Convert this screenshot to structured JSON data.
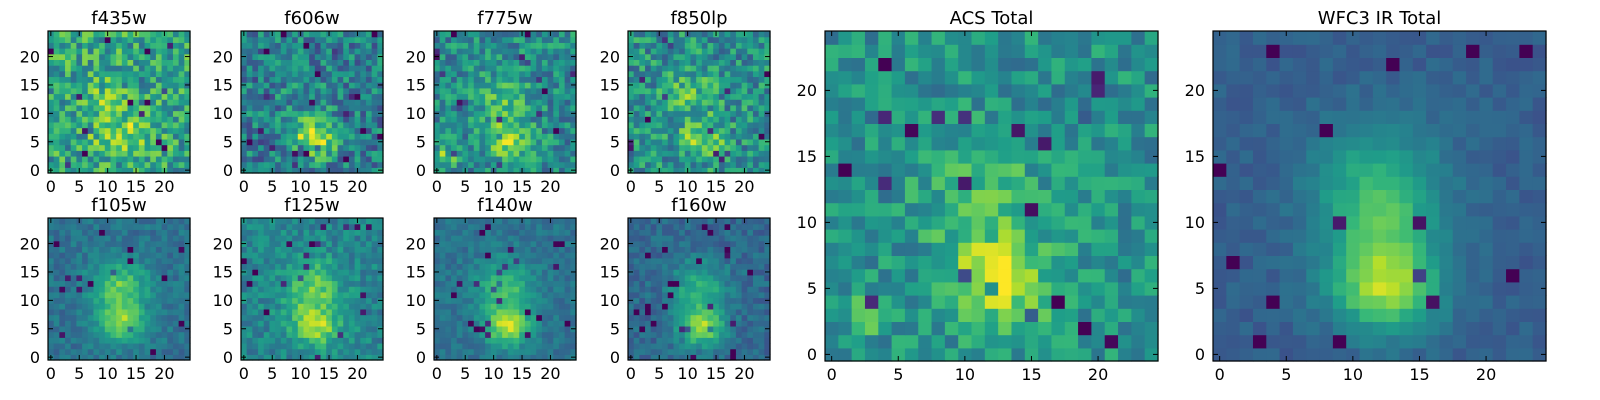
{
  "chart_data": [
    {
      "type": "heatmap",
      "title": "f435w",
      "grid": 25,
      "x_ticks": [
        0,
        5,
        10,
        15,
        20
      ],
      "y_ticks": [
        0,
        5,
        10,
        15,
        20
      ],
      "xlim": [
        -0.5,
        24.5
      ],
      "ylim": [
        -0.5,
        24.5
      ],
      "noise": 0.24,
      "background": 0.58,
      "blobs": [
        {
          "x": 12.5,
          "y": 6.5,
          "sx": 3.5,
          "sy": 2.5,
          "amp": 0.25
        },
        {
          "x": 9.0,
          "y": 13.0,
          "sx": 2.5,
          "sy": 2.5,
          "amp": 0.15
        }
      ],
      "colormap": "viridis"
    },
    {
      "type": "heatmap",
      "title": "f606w",
      "grid": 25,
      "x_ticks": [
        0,
        5,
        10,
        15,
        20
      ],
      "y_ticks": [
        0,
        5,
        10,
        15,
        20
      ],
      "xlim": [
        -0.5,
        24.5
      ],
      "ylim": [
        -0.5,
        24.5
      ],
      "noise": 0.22,
      "background": 0.42,
      "blobs": [
        {
          "x": 12.5,
          "y": 5.5,
          "sx": 2.5,
          "sy": 2.2,
          "amp": 0.55
        },
        {
          "x": 11.0,
          "y": 12.0,
          "sx": 3.0,
          "sy": 3.0,
          "amp": 0.12
        }
      ],
      "colormap": "viridis"
    },
    {
      "type": "heatmap",
      "title": "f775w",
      "grid": 25,
      "x_ticks": [
        0,
        5,
        10,
        15,
        20
      ],
      "y_ticks": [
        0,
        5,
        10,
        15,
        20
      ],
      "xlim": [
        -0.5,
        24.5
      ],
      "ylim": [
        -0.5,
        24.5
      ],
      "noise": 0.2,
      "background": 0.48,
      "blobs": [
        {
          "x": 12.5,
          "y": 5.5,
          "sx": 2.8,
          "sy": 2.4,
          "amp": 0.38
        },
        {
          "x": 11.5,
          "y": 13.0,
          "sx": 3.0,
          "sy": 3.0,
          "amp": 0.2
        },
        {
          "x": 1.5,
          "y": 2.5,
          "sx": 1.2,
          "sy": 1.0,
          "amp": 0.35
        }
      ],
      "colormap": "viridis"
    },
    {
      "type": "heatmap",
      "title": "f850lp",
      "grid": 25,
      "x_ticks": [
        0,
        5,
        10,
        15,
        20
      ],
      "y_ticks": [
        0,
        5,
        10,
        15,
        20
      ],
      "xlim": [
        -0.5,
        24.5
      ],
      "ylim": [
        -0.5,
        24.5
      ],
      "noise": 0.22,
      "background": 0.5,
      "blobs": [
        {
          "x": 12.5,
          "y": 5.5,
          "sx": 2.8,
          "sy": 2.4,
          "amp": 0.3
        },
        {
          "x": 10.5,
          "y": 13.5,
          "sx": 3.0,
          "sy": 3.0,
          "amp": 0.18
        }
      ],
      "colormap": "viridis"
    },
    {
      "type": "heatmap",
      "title": "f105w",
      "grid": 25,
      "x_ticks": [
        0,
        5,
        10,
        15,
        20
      ],
      "y_ticks": [
        0,
        5,
        10,
        15,
        20
      ],
      "xlim": [
        -0.5,
        24.5
      ],
      "ylim": [
        -0.5,
        24.5
      ],
      "noise": 0.09,
      "background": 0.38,
      "blobs": [
        {
          "x": 12.5,
          "y": 6.0,
          "sx": 3.0,
          "sy": 2.4,
          "amp": 0.42
        },
        {
          "x": 12.0,
          "y": 12.5,
          "sx": 3.4,
          "sy": 3.2,
          "amp": 0.38
        }
      ],
      "colormap": "viridis"
    },
    {
      "type": "heatmap",
      "title": "f125w",
      "grid": 25,
      "x_ticks": [
        0,
        5,
        10,
        15,
        20
      ],
      "y_ticks": [
        0,
        5,
        10,
        15,
        20
      ],
      "xlim": [
        -0.5,
        24.5
      ],
      "ylim": [
        -0.5,
        24.5
      ],
      "noise": 0.12,
      "background": 0.45,
      "blobs": [
        {
          "x": 12.5,
          "y": 5.5,
          "sx": 3.0,
          "sy": 2.5,
          "amp": 0.4
        },
        {
          "x": 12.0,
          "y": 12.5,
          "sx": 3.5,
          "sy": 3.5,
          "amp": 0.32
        }
      ],
      "colormap": "viridis"
    },
    {
      "type": "heatmap",
      "title": "f140w",
      "grid": 25,
      "x_ticks": [
        0,
        5,
        10,
        15,
        20
      ],
      "y_ticks": [
        0,
        5,
        10,
        15,
        20
      ],
      "xlim": [
        -0.5,
        24.5
      ],
      "ylim": [
        -0.5,
        24.5
      ],
      "noise": 0.08,
      "background": 0.38,
      "blobs": [
        {
          "x": 12.5,
          "y": 5.5,
          "sx": 2.8,
          "sy": 2.4,
          "amp": 0.5
        },
        {
          "x": 12.0,
          "y": 12.5,
          "sx": 3.4,
          "sy": 3.4,
          "amp": 0.32
        }
      ],
      "colormap": "viridis"
    },
    {
      "type": "heatmap",
      "title": "f160w",
      "grid": 25,
      "x_ticks": [
        0,
        5,
        10,
        15,
        20
      ],
      "y_ticks": [
        0,
        5,
        10,
        15,
        20
      ],
      "xlim": [
        -0.5,
        24.5
      ],
      "ylim": [
        -0.5,
        24.5
      ],
      "noise": 0.09,
      "background": 0.34,
      "blobs": [
        {
          "x": 12.5,
          "y": 5.5,
          "sx": 2.8,
          "sy": 2.4,
          "amp": 0.52
        },
        {
          "x": 12.0,
          "y": 12.5,
          "sx": 3.4,
          "sy": 3.2,
          "amp": 0.3
        }
      ],
      "colormap": "viridis"
    },
    {
      "type": "heatmap",
      "title": "ACS Total",
      "grid": 25,
      "x_ticks": [
        0,
        5,
        10,
        15,
        20
      ],
      "y_ticks": [
        0,
        5,
        10,
        15,
        20
      ],
      "xlim": [
        -0.5,
        24.5
      ],
      "ylim": [
        -0.5,
        24.5
      ],
      "noise": 0.16,
      "background": 0.5,
      "blobs": [
        {
          "x": 12.5,
          "y": 5.5,
          "sx": 2.8,
          "sy": 2.4,
          "amp": 0.45
        },
        {
          "x": 11.0,
          "y": 12.5,
          "sx": 3.0,
          "sy": 3.0,
          "amp": 0.2
        },
        {
          "x": 3.0,
          "y": 3.0,
          "sx": 1.0,
          "sy": 1.0,
          "amp": 0.35
        }
      ],
      "colormap": "viridis"
    },
    {
      "type": "heatmap",
      "title": "WFC3 IR Total",
      "grid": 25,
      "x_ticks": [
        0,
        5,
        10,
        15,
        20
      ],
      "y_ticks": [
        0,
        5,
        10,
        15,
        20
      ],
      "xlim": [
        -0.5,
        24.5
      ],
      "ylim": [
        -0.5,
        24.5
      ],
      "noise": 0.05,
      "background": 0.3,
      "blobs": [
        {
          "x": 12.5,
          "y": 5.0,
          "sx": 2.8,
          "sy": 2.4,
          "amp": 0.5
        },
        {
          "x": 12.0,
          "y": 11.5,
          "sx": 3.4,
          "sy": 4.0,
          "amp": 0.4
        }
      ],
      "colormap": "viridis"
    }
  ]
}
